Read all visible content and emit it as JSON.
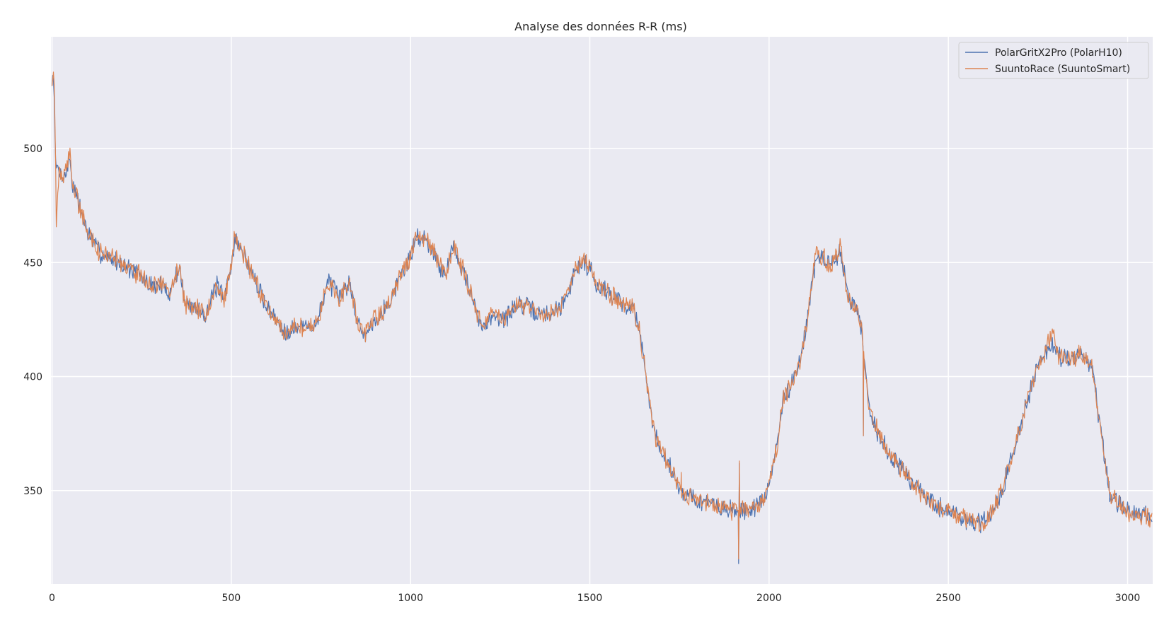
{
  "chart_data": {
    "type": "line",
    "title": "Analyse des données R-R (ms)",
    "xlabel": "",
    "ylabel": "",
    "xlim": [
      -3,
      3070
    ],
    "ylim": [
      309,
      549
    ],
    "x_ticks": [
      0,
      500,
      1000,
      1500,
      2000,
      2500,
      3000
    ],
    "y_ticks": [
      350,
      400,
      450,
      500
    ],
    "grid": true,
    "legend_position": "top-right",
    "colors": {
      "background": "#eaeaf2",
      "grid": "#ffffff"
    },
    "series": [
      {
        "name": "PolarGritX2Pro (PolarH10)",
        "color": "#4c72b0",
        "anchors": [
          [
            0,
            528
          ],
          [
            5,
            533
          ],
          [
            10,
            492
          ],
          [
            20,
            490
          ],
          [
            35,
            487
          ],
          [
            50,
            496
          ],
          [
            55,
            486
          ],
          [
            70,
            478
          ],
          [
            100,
            463
          ],
          [
            130,
            455
          ],
          [
            160,
            452
          ],
          [
            200,
            449
          ],
          [
            240,
            445
          ],
          [
            270,
            440
          ],
          [
            300,
            440
          ],
          [
            330,
            437
          ],
          [
            355,
            449
          ],
          [
            370,
            432
          ],
          [
            400,
            430
          ],
          [
            430,
            428
          ],
          [
            460,
            440
          ],
          [
            480,
            433
          ],
          [
            500,
            450
          ],
          [
            510,
            460
          ],
          [
            530,
            455
          ],
          [
            550,
            448
          ],
          [
            580,
            437
          ],
          [
            610,
            428
          ],
          [
            650,
            420
          ],
          [
            700,
            422
          ],
          [
            740,
            423
          ],
          [
            770,
            443
          ],
          [
            800,
            434
          ],
          [
            830,
            442
          ],
          [
            850,
            425
          ],
          [
            870,
            418
          ],
          [
            900,
            425
          ],
          [
            940,
            432
          ],
          [
            960,
            440
          ],
          [
            1000,
            453
          ],
          [
            1020,
            462
          ],
          [
            1040,
            460
          ],
          [
            1060,
            457
          ],
          [
            1080,
            448
          ],
          [
            1100,
            446
          ],
          [
            1120,
            458
          ],
          [
            1150,
            445
          ],
          [
            1180,
            430
          ],
          [
            1200,
            420
          ],
          [
            1230,
            428
          ],
          [
            1260,
            425
          ],
          [
            1300,
            432
          ],
          [
            1330,
            430
          ],
          [
            1360,
            427
          ],
          [
            1400,
            428
          ],
          [
            1430,
            433
          ],
          [
            1460,
            447
          ],
          [
            1480,
            450
          ],
          [
            1500,
            448
          ],
          [
            1520,
            440
          ],
          [
            1550,
            437
          ],
          [
            1590,
            432
          ],
          [
            1620,
            430
          ],
          [
            1640,
            420
          ],
          [
            1660,
            395
          ],
          [
            1680,
            375
          ],
          [
            1710,
            365
          ],
          [
            1740,
            355
          ],
          [
            1760,
            349
          ],
          [
            1800,
            346
          ],
          [
            1850,
            343
          ],
          [
            1900,
            341
          ],
          [
            1950,
            342
          ],
          [
            1985,
            345
          ],
          [
            2000,
            353
          ],
          [
            2020,
            368
          ],
          [
            2040,
            390
          ],
          [
            2070,
            400
          ],
          [
            2090,
            410
          ],
          [
            2110,
            428
          ],
          [
            2130,
            452
          ],
          [
            2150,
            452
          ],
          [
            2170,
            448
          ],
          [
            2200,
            455
          ],
          [
            2220,
            435
          ],
          [
            2250,
            428
          ],
          [
            2260,
            418
          ],
          [
            2280,
            385
          ],
          [
            2310,
            373
          ],
          [
            2340,
            365
          ],
          [
            2370,
            360
          ],
          [
            2400,
            353
          ],
          [
            2430,
            348
          ],
          [
            2460,
            344
          ],
          [
            2500,
            341
          ],
          [
            2540,
            338
          ],
          [
            2590,
            335
          ],
          [
            2620,
            340
          ],
          [
            2650,
            350
          ],
          [
            2690,
            372
          ],
          [
            2720,
            390
          ],
          [
            2740,
            400
          ],
          [
            2760,
            407
          ],
          [
            2790,
            415
          ],
          [
            2810,
            408
          ],
          [
            2840,
            407
          ],
          [
            2870,
            410
          ],
          [
            2900,
            405
          ],
          [
            2930,
            370
          ],
          [
            2950,
            348
          ],
          [
            2980,
            343
          ],
          [
            3010,
            340
          ],
          [
            3040,
            339
          ],
          [
            3070,
            338
          ]
        ],
        "spikes": [
          [
            1755,
            352
          ],
          [
            1915,
            318
          ],
          [
            1917,
            362
          ],
          [
            2263,
            374
          ]
        ]
      },
      {
        "name": "SuuntoRace (SuuntoSmart)",
        "color": "#dd8452",
        "anchors": [
          [
            0,
            528
          ],
          [
            5,
            535
          ],
          [
            10,
            495
          ],
          [
            12,
            467
          ],
          [
            20,
            490
          ],
          [
            35,
            487
          ],
          [
            50,
            498
          ],
          [
            55,
            486
          ],
          [
            70,
            478
          ],
          [
            100,
            463
          ],
          [
            130,
            455
          ],
          [
            160,
            452
          ],
          [
            200,
            449
          ],
          [
            240,
            445
          ],
          [
            270,
            440
          ],
          [
            300,
            440
          ],
          [
            330,
            437
          ],
          [
            355,
            449
          ],
          [
            370,
            432
          ],
          [
            400,
            430
          ],
          [
            430,
            428
          ],
          [
            460,
            440
          ],
          [
            480,
            433
          ],
          [
            500,
            450
          ],
          [
            510,
            462
          ],
          [
            530,
            455
          ],
          [
            550,
            448
          ],
          [
            580,
            437
          ],
          [
            610,
            428
          ],
          [
            650,
            420
          ],
          [
            700,
            422
          ],
          [
            740,
            423
          ],
          [
            770,
            443
          ],
          [
            800,
            434
          ],
          [
            830,
            442
          ],
          [
            850,
            425
          ],
          [
            870,
            418
          ],
          [
            900,
            425
          ],
          [
            940,
            432
          ],
          [
            960,
            440
          ],
          [
            1000,
            453
          ],
          [
            1020,
            464
          ],
          [
            1040,
            460
          ],
          [
            1060,
            457
          ],
          [
            1080,
            448
          ],
          [
            1100,
            446
          ],
          [
            1120,
            458
          ],
          [
            1150,
            445
          ],
          [
            1180,
            430
          ],
          [
            1200,
            420
          ],
          [
            1230,
            428
          ],
          [
            1260,
            425
          ],
          [
            1300,
            432
          ],
          [
            1330,
            430
          ],
          [
            1360,
            427
          ],
          [
            1400,
            428
          ],
          [
            1430,
            433
          ],
          [
            1460,
            447
          ],
          [
            1480,
            452
          ],
          [
            1500,
            448
          ],
          [
            1520,
            440
          ],
          [
            1550,
            437
          ],
          [
            1590,
            432
          ],
          [
            1620,
            430
          ],
          [
            1640,
            420
          ],
          [
            1660,
            395
          ],
          [
            1680,
            375
          ],
          [
            1710,
            365
          ],
          [
            1740,
            355
          ],
          [
            1760,
            349
          ],
          [
            1800,
            346
          ],
          [
            1850,
            343
          ],
          [
            1900,
            341
          ],
          [
            1950,
            342
          ],
          [
            1985,
            345
          ],
          [
            2000,
            353
          ],
          [
            2020,
            368
          ],
          [
            2040,
            390
          ],
          [
            2070,
            400
          ],
          [
            2090,
            410
          ],
          [
            2110,
            428
          ],
          [
            2130,
            455
          ],
          [
            2150,
            452
          ],
          [
            2170,
            448
          ],
          [
            2200,
            457
          ],
          [
            2220,
            435
          ],
          [
            2250,
            428
          ],
          [
            2260,
            418
          ],
          [
            2280,
            385
          ],
          [
            2310,
            373
          ],
          [
            2340,
            365
          ],
          [
            2370,
            360
          ],
          [
            2400,
            353
          ],
          [
            2430,
            348
          ],
          [
            2460,
            344
          ],
          [
            2500,
            341
          ],
          [
            2540,
            338
          ],
          [
            2590,
            335
          ],
          [
            2620,
            340
          ],
          [
            2650,
            350
          ],
          [
            2690,
            372
          ],
          [
            2720,
            390
          ],
          [
            2740,
            400
          ],
          [
            2760,
            407
          ],
          [
            2790,
            420
          ],
          [
            2810,
            408
          ],
          [
            2840,
            407
          ],
          [
            2870,
            410
          ],
          [
            2900,
            405
          ],
          [
            2930,
            370
          ],
          [
            2950,
            348
          ],
          [
            2980,
            343
          ],
          [
            3010,
            340
          ],
          [
            3040,
            339
          ],
          [
            3070,
            338
          ]
        ],
        "spikes": [
          [
            1755,
            358
          ],
          [
            1915,
            320
          ],
          [
            1917,
            363
          ],
          [
            2263,
            374
          ]
        ]
      }
    ]
  }
}
